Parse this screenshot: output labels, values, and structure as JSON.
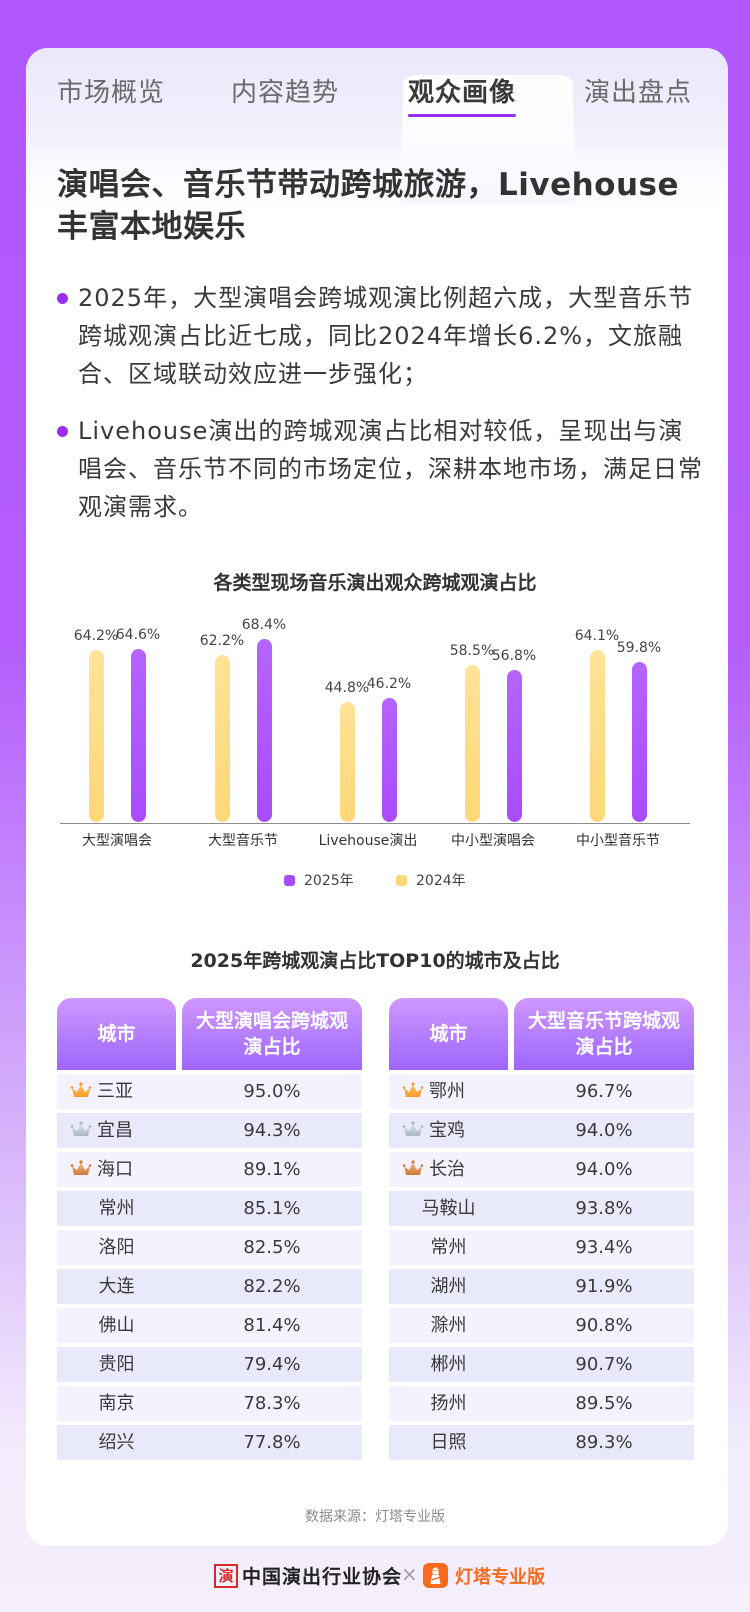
{
  "tabs": [
    {
      "label": "市场概览",
      "active": false
    },
    {
      "label": "内容趋势",
      "active": false
    },
    {
      "label": "观众画像",
      "active": true
    },
    {
      "label": "演出盘点",
      "active": false
    }
  ],
  "headline": "演唱会、音乐节带动跨城旅游，Livehouse丰富本地娱乐",
  "bullets": [
    "2025年，大型演唱会跨城观演比例超六成，大型音乐节跨城观演占比近七成，同比2024年增长6.2%，文旅融合、区域联动效应进一步强化；",
    "Livehouse演出的跨城观演占比相对较低，呈现出与演唱会、音乐节不同的市场定位，深耕本地市场，满足日常观演需求。"
  ],
  "chart_data": {
    "type": "bar",
    "title": "各类型现场音乐演出观众跨城观演占比",
    "categories": [
      "大型演唱会",
      "大型音乐节",
      "Livehouse演出",
      "中小型演唱会",
      "中小型音乐节"
    ],
    "series": [
      {
        "name": "2024年",
        "color": "#fed778",
        "values": [
          64.2,
          62.2,
          44.8,
          58.5,
          64.1
        ],
        "labels": [
          "64.2%",
          "62.2%",
          "44.8%",
          "58.5%",
          "64.1%"
        ]
      },
      {
        "name": "2025年",
        "color": "#a94cfd",
        "values": [
          64.6,
          68.4,
          46.2,
          56.8,
          59.8
        ],
        "labels": [
          "64.6%",
          "68.4%",
          "46.2%",
          "56.8%",
          "59.8%"
        ]
      }
    ],
    "xlabel": "",
    "ylabel": "",
    "ylim": [
      0,
      75
    ],
    "grid": false,
    "legend": {
      "position": "bottom",
      "entries": [
        "2025年",
        "2024年"
      ]
    }
  },
  "rank_section": {
    "title": "2025年跨城观演占比TOP10的城市及占比",
    "tables": [
      {
        "city_header": "城市",
        "value_header": "大型演唱会跨城观演占比",
        "rows": [
          {
            "city": "三亚",
            "value": "95.0%",
            "crown": "gold"
          },
          {
            "city": "宜昌",
            "value": "94.3%",
            "crown": "silver"
          },
          {
            "city": "海口",
            "value": "89.1%",
            "crown": "bronze"
          },
          {
            "city": "常州",
            "value": "85.1%",
            "crown": ""
          },
          {
            "city": "洛阳",
            "value": "82.5%",
            "crown": ""
          },
          {
            "city": "大连",
            "value": "82.2%",
            "crown": ""
          },
          {
            "city": "佛山",
            "value": "81.4%",
            "crown": ""
          },
          {
            "city": "贵阳",
            "value": "79.4%",
            "crown": ""
          },
          {
            "city": "南京",
            "value": "78.3%",
            "crown": ""
          },
          {
            "city": "绍兴",
            "value": "77.8%",
            "crown": ""
          }
        ]
      },
      {
        "city_header": "城市",
        "value_header": "大型音乐节跨城观演占比",
        "rows": [
          {
            "city": "鄂州",
            "value": "96.7%",
            "crown": "gold"
          },
          {
            "city": "宝鸡",
            "value": "94.0%",
            "crown": "silver"
          },
          {
            "city": "长治",
            "value": "94.0%",
            "crown": "bronze"
          },
          {
            "city": "马鞍山",
            "value": "93.8%",
            "crown": ""
          },
          {
            "city": "常州",
            "value": "93.4%",
            "crown": ""
          },
          {
            "city": "湖州",
            "value": "91.9%",
            "crown": ""
          },
          {
            "city": "滁州",
            "value": "90.8%",
            "crown": ""
          },
          {
            "city": "郴州",
            "value": "90.7%",
            "crown": ""
          },
          {
            "city": "扬州",
            "value": "89.5%",
            "crown": ""
          },
          {
            "city": "日照",
            "value": "89.3%",
            "crown": ""
          }
        ]
      }
    ]
  },
  "source": "数据来源：灯塔专业版",
  "footer": {
    "seal_char": "演",
    "association": "中国演出行业协会",
    "separator": "×",
    "partner": "灯塔专业版"
  },
  "colors": {
    "accent": "#9b2ef5",
    "bar_2025": "#a94cfd",
    "bar_2024": "#fed778",
    "brand_orange": "#f86b1d"
  }
}
